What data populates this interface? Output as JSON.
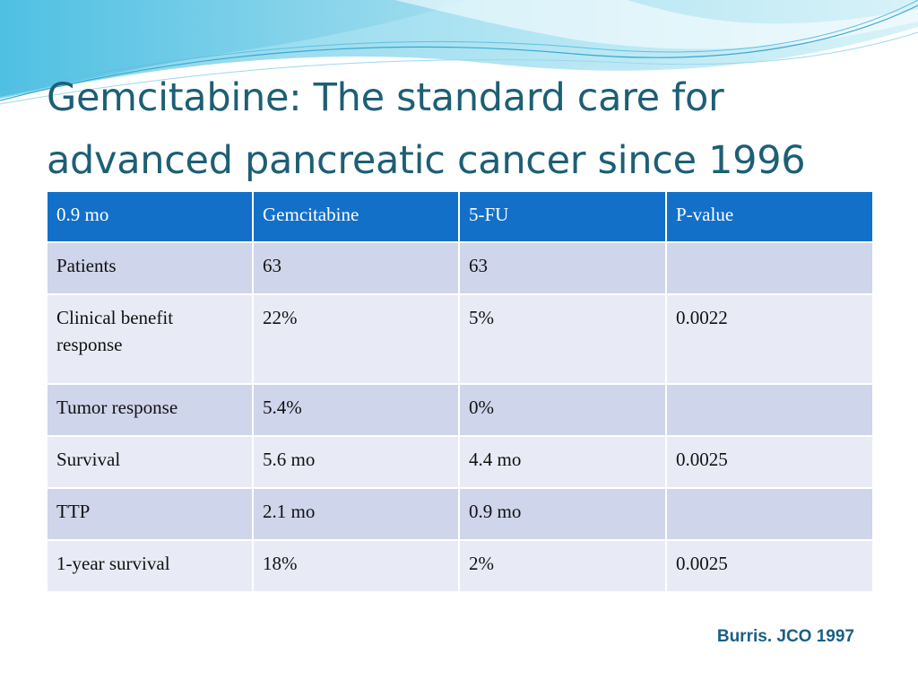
{
  "slide": {
    "title_line1": "Gemcitabine: The standard care for",
    "title_line2": "advanced pancreatic cancer since 1996",
    "citation": "Burris. JCO 1997"
  },
  "table": {
    "headers": [
      "0.9 mo",
      "Gemcitabine",
      "5-FU",
      "P-value"
    ],
    "rows": [
      [
        "Patients",
        "63",
        "63",
        ""
      ],
      [
        "Clinical benefit response",
        "22%",
        "5%",
        "0.0022"
      ],
      [
        "Tumor response",
        "5.4%",
        "0%",
        ""
      ],
      [
        "Survival",
        "5.6 mo",
        "4.4 mo",
        "0.0025"
      ],
      [
        "TTP",
        "2.1 mo",
        "0.9 mo",
        ""
      ],
      [
        "1-year survival",
        "18%",
        "2%",
        "0.0025"
      ]
    ]
  },
  "colors": {
    "title": "#1d5f75",
    "header_bg": "#1370c9",
    "row_dark": "#cfd5ea",
    "row_light": "#e8ebf5",
    "citation": "#1a5f86"
  }
}
